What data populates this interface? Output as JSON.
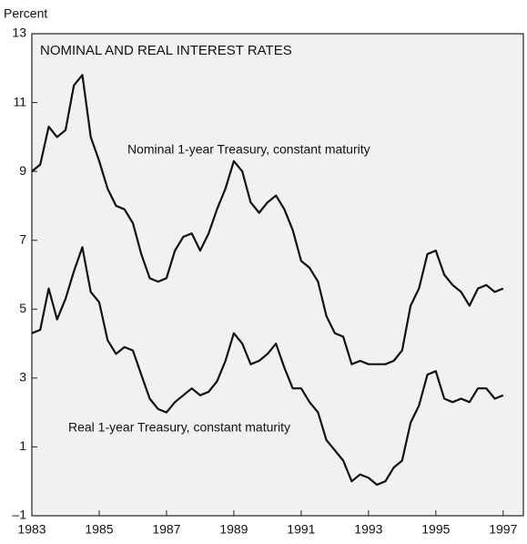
{
  "chart_data": {
    "type": "line",
    "title": "NOMINAL AND REAL INTEREST RATES",
    "y_label": "Percent",
    "x": [
      1983,
      1983.25,
      1983.5,
      1983.75,
      1984,
      1984.25,
      1984.5,
      1984.75,
      1985,
      1985.25,
      1985.5,
      1985.75,
      1986,
      1986.25,
      1986.5,
      1986.75,
      1987,
      1987.25,
      1987.5,
      1987.75,
      1988,
      1988.25,
      1988.5,
      1988.75,
      1989,
      1989.25,
      1989.5,
      1989.75,
      1990,
      1990.25,
      1990.5,
      1990.75,
      1991,
      1991.25,
      1991.5,
      1991.75,
      1992,
      1992.25,
      1992.5,
      1992.75,
      1993,
      1993.25,
      1993.5,
      1993.75,
      1994,
      1994.25,
      1994.5,
      1994.75,
      1995,
      1995.25,
      1995.5,
      1995.75,
      1996,
      1996.25,
      1996.5,
      1996.75,
      1997
    ],
    "series": [
      {
        "name": "Nominal 1-year Treasury, constant maturity",
        "color": "#111111",
        "values": [
          9.0,
          9.2,
          10.3,
          10.0,
          10.2,
          11.5,
          11.8,
          10.0,
          9.3,
          8.5,
          8.0,
          7.9,
          7.5,
          6.6,
          5.9,
          5.8,
          5.9,
          6.7,
          7.1,
          7.2,
          6.7,
          7.2,
          7.9,
          8.5,
          9.3,
          9.0,
          8.1,
          7.8,
          8.1,
          8.3,
          7.9,
          7.3,
          6.4,
          6.2,
          5.8,
          4.8,
          4.3,
          4.2,
          3.4,
          3.5,
          3.4,
          3.4,
          3.4,
          3.5,
          3.8,
          5.1,
          5.6,
          6.6,
          6.7,
          6.0,
          5.7,
          5.5,
          5.1,
          5.6,
          5.7,
          5.5,
          5.6
        ]
      },
      {
        "name": "Real 1-year Treasury, constant maturity",
        "color": "#111111",
        "values": [
          4.3,
          4.4,
          5.6,
          4.7,
          5.3,
          6.1,
          6.8,
          5.5,
          5.2,
          4.1,
          3.7,
          3.9,
          3.8,
          3.1,
          2.4,
          2.1,
          2.0,
          2.3,
          2.5,
          2.7,
          2.5,
          2.6,
          2.9,
          3.5,
          4.3,
          4.0,
          3.4,
          3.5,
          3.7,
          4.0,
          3.3,
          2.7,
          2.7,
          2.3,
          2.0,
          1.2,
          0.9,
          0.6,
          0.0,
          0.2,
          0.1,
          -0.1,
          0.0,
          0.4,
          0.6,
          1.7,
          2.2,
          3.1,
          3.2,
          2.4,
          2.3,
          2.4,
          2.3,
          2.7,
          2.7,
          2.4,
          2.5
        ]
      }
    ],
    "xlim": [
      1983,
      1997.6
    ],
    "xticks": [
      1983,
      1985,
      1987,
      1989,
      1991,
      1993,
      1995,
      1997
    ],
    "ylim": [
      -1,
      13
    ],
    "yticks": [
      {
        "value": -1,
        "label": "–1"
      },
      1,
      3,
      5,
      7,
      9,
      11,
      13
    ]
  }
}
